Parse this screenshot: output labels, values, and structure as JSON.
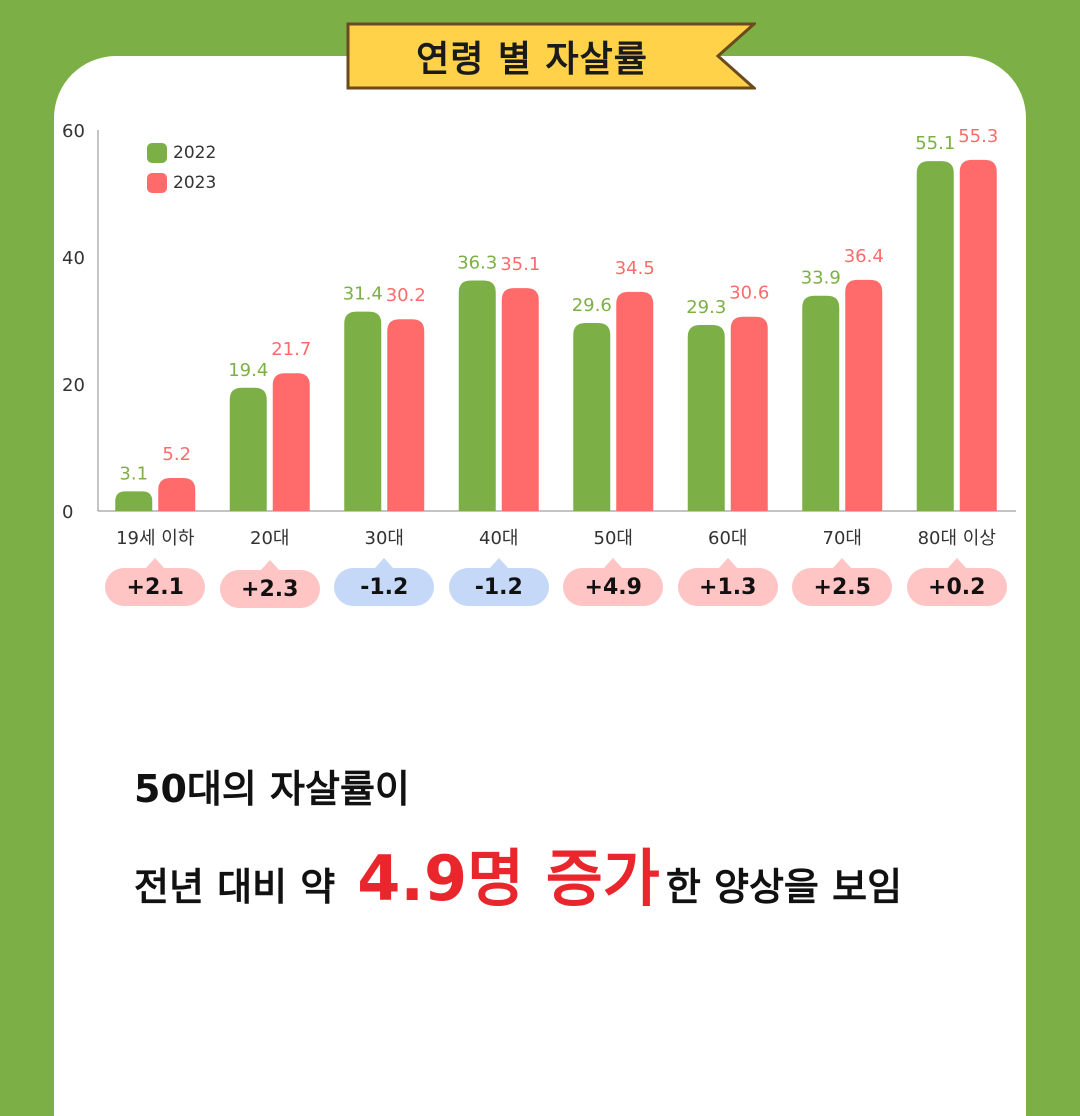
{
  "title": "연령 별 자살률",
  "colors": {
    "background": "#7cb046",
    "card": "#ffffff",
    "banner_fill": "#ffd24a",
    "banner_border": "#6b4a1e",
    "series_2022": "#7cb046",
    "series_2023": "#ff6b6b",
    "increase_badge": "#ffc4c4",
    "decrease_badge": "#c5d8f7",
    "highlight": "#e8262c"
  },
  "chart_data": {
    "type": "bar",
    "categories": [
      "19세 이하",
      "20대",
      "30대",
      "40대",
      "50대",
      "60대",
      "70대",
      "80대 이상"
    ],
    "series": [
      {
        "name": "2022",
        "values": [
          3.1,
          19.4,
          31.4,
          36.3,
          29.6,
          29.3,
          33.9,
          55.1
        ],
        "labels": [
          "3.1",
          "19.4",
          "31.4",
          "36.3",
          "29.6",
          "29.3",
          "33.9",
          "55.1"
        ]
      },
      {
        "name": "2023",
        "values": [
          5.2,
          21.7,
          30.2,
          35.1,
          34.5,
          30.6,
          36.4,
          55.3
        ],
        "labels": [
          "5.2",
          "21.7",
          "30.2",
          "35.1",
          "34.5",
          "30.6",
          "36.4",
          "55.3"
        ]
      }
    ],
    "yticks": [
      "0",
      "20",
      "40",
      "60"
    ],
    "ylim": [
      0,
      60
    ],
    "legend_position": "top-left",
    "grid": false
  },
  "differences": [
    {
      "label": "+2.1",
      "direction": "increase"
    },
    {
      "label": "+2.3",
      "direction": "increase"
    },
    {
      "label": "-1.2",
      "direction": "decrease"
    },
    {
      "label": "-1.2",
      "direction": "decrease"
    },
    {
      "label": "+4.9",
      "direction": "increase"
    },
    {
      "label": "+1.3",
      "direction": "increase"
    },
    {
      "label": "+2.5",
      "direction": "increase"
    },
    {
      "label": "+0.2",
      "direction": "increase"
    }
  ],
  "caption": {
    "line1": "50대의 자살률이",
    "line2_prefix": "전년 대비 약",
    "line2_highlight": "4.9명 증가",
    "line2_suffix": "한 양상을 보임"
  }
}
